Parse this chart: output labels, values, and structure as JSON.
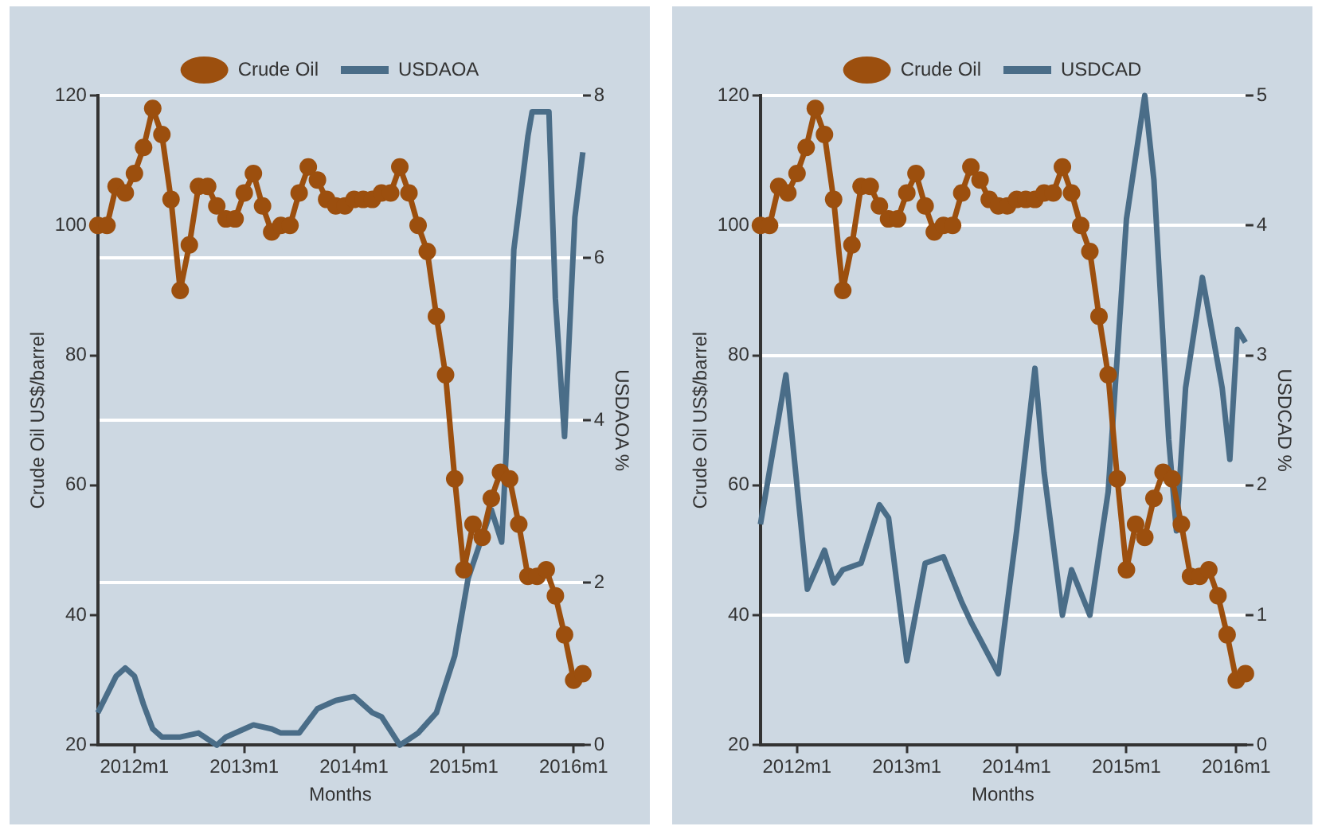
{
  "chart_data": [
    {
      "type": "line",
      "xlabel": "Months",
      "ylabel": "Crude Oil US$/barrel",
      "y2label": "USDAOA %",
      "legend": "top",
      "grid": "y2",
      "xlim": [
        "2011-09",
        "2016-02"
      ],
      "xticks": [
        {
          "value": "2012-01",
          "label": "2012m1"
        },
        {
          "value": "2013-01",
          "label": "2013m1"
        },
        {
          "value": "2014-01",
          "label": "2014m1"
        },
        {
          "value": "2015-01",
          "label": "2015m1"
        },
        {
          "value": "2016-01",
          "label": "2016m1"
        }
      ],
      "ylim": [
        20,
        120
      ],
      "yticks": [
        20,
        40,
        60,
        80,
        100,
        120
      ],
      "y2lim": [
        0,
        8
      ],
      "y2ticks": [
        0,
        2,
        4,
        6,
        8
      ],
      "series": [
        {
          "name": "USDAOA",
          "color": "#4a6d88",
          "axis": "y2",
          "marker": "none",
          "x": [
            "2011-09-01",
            "2011-11-01",
            "2011-12-01",
            "2012-01-01",
            "2012-02-01",
            "2012-03-01",
            "2012-04-01",
            "2012-06-01",
            "2012-08-01",
            "2012-10-01",
            "2012-11-01",
            "2013-01-01",
            "2013-02-01",
            "2013-04-01",
            "2013-05-01",
            "2013-07-01",
            "2013-09-01",
            "2013-11-01",
            "2014-01-01",
            "2014-03-01",
            "2014-04-01",
            "2014-06-01",
            "2014-08-01",
            "2014-10-01",
            "2014-12-01",
            "2015-01-15",
            "2015-04-01",
            "2015-05-05",
            "2015-05-20",
            "2015-06-15",
            "2015-08-01",
            "2015-08-15",
            "2015-10-10",
            "2015-11-01",
            "2015-12-01",
            "2016-01-05",
            "2016-02-01"
          ],
          "values": [
            0.4,
            0.85,
            0.95,
            0.85,
            0.5,
            0.2,
            0.1,
            0.1,
            0.15,
            0.0,
            0.1,
            0.2,
            0.25,
            0.2,
            0.15,
            0.15,
            0.45,
            0.55,
            0.6,
            0.4,
            0.35,
            0.0,
            0.15,
            0.4,
            1.1,
            2.05,
            2.9,
            2.5,
            3.6,
            6.1,
            7.5,
            7.8,
            7.8,
            5.5,
            3.8,
            6.5,
            7.3
          ]
        },
        {
          "name": "Crude Oil",
          "color": "#9c4f0e",
          "axis": "y",
          "marker": "circle",
          "x": [
            "2011-09",
            "2011-10",
            "2011-11",
            "2011-12",
            "2012-01",
            "2012-02",
            "2012-03",
            "2012-04",
            "2012-05",
            "2012-06",
            "2012-07",
            "2012-08",
            "2012-09",
            "2012-10",
            "2012-11",
            "2012-12",
            "2013-01",
            "2013-02",
            "2013-03",
            "2013-04",
            "2013-05",
            "2013-06",
            "2013-07",
            "2013-08",
            "2013-09",
            "2013-10",
            "2013-11",
            "2013-12",
            "2014-01",
            "2014-02",
            "2014-03",
            "2014-04",
            "2014-05",
            "2014-06",
            "2014-07",
            "2014-08",
            "2014-09",
            "2014-10",
            "2014-11",
            "2014-12",
            "2015-01",
            "2015-02",
            "2015-03",
            "2015-04",
            "2015-05",
            "2015-06",
            "2015-07",
            "2015-08",
            "2015-09",
            "2015-10",
            "2015-11",
            "2015-12",
            "2016-01",
            "2016-02"
          ],
          "values": [
            100,
            100,
            106,
            105,
            108,
            112,
            118,
            114,
            104,
            90,
            97,
            106,
            106,
            103,
            101,
            101,
            105,
            108,
            103,
            99,
            100,
            100,
            105,
            109,
            107,
            104,
            103,
            103,
            104,
            104,
            104,
            105,
            105,
            109,
            105,
            100,
            96,
            86,
            77,
            61,
            47,
            54,
            52,
            58,
            62,
            61,
            54,
            46,
            46,
            47,
            43,
            37,
            30,
            31
          ]
        }
      ]
    },
    {
      "type": "line",
      "xlabel": "Months",
      "ylabel": "Crude Oil US$/barrel",
      "y2label": "USDCAD %",
      "legend": "top",
      "grid": "y2",
      "xlim": [
        "2011-09",
        "2016-02"
      ],
      "xticks": [
        {
          "value": "2012-01",
          "label": "2012m1"
        },
        {
          "value": "2013-01",
          "label": "2013m1"
        },
        {
          "value": "2014-01",
          "label": "2014m1"
        },
        {
          "value": "2015-01",
          "label": "2015m1"
        },
        {
          "value": "2016-01",
          "label": "2016m1"
        }
      ],
      "ylim": [
        20,
        120
      ],
      "yticks": [
        20,
        40,
        60,
        80,
        100,
        120
      ],
      "y2lim": [
        0,
        5
      ],
      "y2ticks": [
        0,
        1,
        2,
        3,
        4,
        5
      ],
      "series": [
        {
          "name": "USDCAD",
          "color": "#4a6d88",
          "axis": "y2",
          "marker": "none",
          "x": [
            "2011-09-01",
            "2011-11-25",
            "2012-02-05",
            "2012-04-01",
            "2012-05-01",
            "2012-06-01",
            "2012-08-01",
            "2012-10-01",
            "2012-11-01",
            "2013-01-01",
            "2013-03-01",
            "2013-05-01",
            "2013-07-01",
            "2013-08-01",
            "2013-11-01",
            "2014-01-01",
            "2014-03-01",
            "2014-04-01",
            "2014-06-01",
            "2014-07-01",
            "2014-09-01",
            "2014-11-01",
            "2015-01-01",
            "2015-03-01",
            "2015-04-01",
            "2015-05-20",
            "2015-06-15",
            "2015-07-15",
            "2015-09-10",
            "2015-11-15",
            "2015-12-10",
            "2016-01-05",
            "2016-02-01"
          ],
          "values": [
            1.7,
            2.85,
            1.2,
            1.5,
            1.25,
            1.35,
            1.4,
            1.85,
            1.75,
            0.65,
            1.4,
            1.45,
            1.1,
            0.95,
            0.55,
            1.65,
            2.9,
            2.1,
            1.0,
            1.35,
            1.0,
            1.95,
            4.05,
            5.0,
            4.35,
            2.35,
            1.65,
            2.75,
            3.6,
            2.75,
            2.2,
            3.2,
            3.1
          ]
        },
        {
          "name": "Crude Oil",
          "color": "#9c4f0e",
          "axis": "y",
          "marker": "circle",
          "x": [
            "2011-09",
            "2011-10",
            "2011-11",
            "2011-12",
            "2012-01",
            "2012-02",
            "2012-03",
            "2012-04",
            "2012-05",
            "2012-06",
            "2012-07",
            "2012-08",
            "2012-09",
            "2012-10",
            "2012-11",
            "2012-12",
            "2013-01",
            "2013-02",
            "2013-03",
            "2013-04",
            "2013-05",
            "2013-06",
            "2013-07",
            "2013-08",
            "2013-09",
            "2013-10",
            "2013-11",
            "2013-12",
            "2014-01",
            "2014-02",
            "2014-03",
            "2014-04",
            "2014-05",
            "2014-06",
            "2014-07",
            "2014-08",
            "2014-09",
            "2014-10",
            "2014-11",
            "2014-12",
            "2015-01",
            "2015-02",
            "2015-03",
            "2015-04",
            "2015-05",
            "2015-06",
            "2015-07",
            "2015-08",
            "2015-09",
            "2015-10",
            "2015-11",
            "2015-12",
            "2016-01",
            "2016-02"
          ],
          "values": [
            100,
            100,
            106,
            105,
            108,
            112,
            118,
            114,
            104,
            90,
            97,
            106,
            106,
            103,
            101,
            101,
            105,
            108,
            103,
            99,
            100,
            100,
            105,
            109,
            107,
            104,
            103,
            103,
            104,
            104,
            104,
            105,
            105,
            109,
            105,
            100,
            96,
            86,
            77,
            61,
            47,
            54,
            52,
            58,
            62,
            61,
            54,
            46,
            46,
            47,
            43,
            37,
            30,
            31
          ]
        }
      ]
    }
  ]
}
